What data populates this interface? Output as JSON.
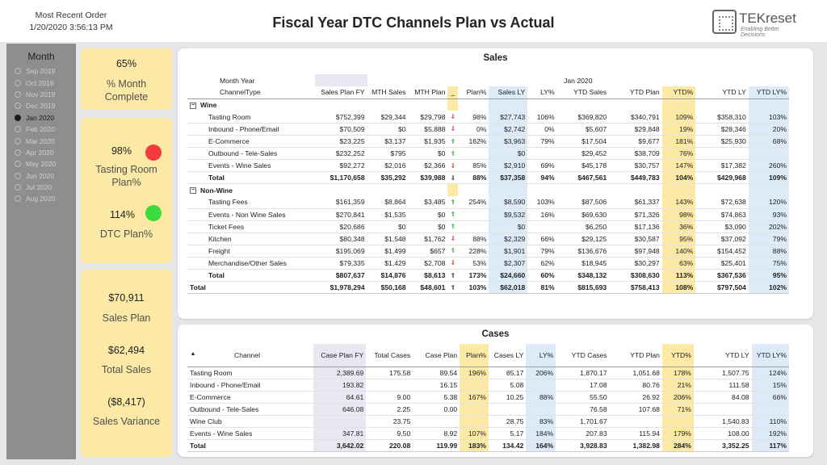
{
  "header": {
    "recent_label": "Most Recent Order",
    "recent_value": "1/20/2020 3:56:13 PM",
    "title": "Fiscal Year DTC Channels Plan vs Actual",
    "logo_name": "TEKreset",
    "logo_tagline": "Enabling Better Decisions"
  },
  "slicer": {
    "title": "Month",
    "items": [
      {
        "label": "Sep 2019",
        "selected": false
      },
      {
        "label": "Oct 2019",
        "selected": false
      },
      {
        "label": "Nov 2019",
        "selected": false
      },
      {
        "label": "Dec 2019",
        "selected": false
      },
      {
        "label": "Jan 2020",
        "selected": true
      },
      {
        "label": "Feb 2020",
        "selected": false
      },
      {
        "label": "Mar 2020",
        "selected": false
      },
      {
        "label": "Apr 2020",
        "selected": false
      },
      {
        "label": "May 2020",
        "selected": false
      },
      {
        "label": "Jun 2020",
        "selected": false
      },
      {
        "label": "Jul 2020",
        "selected": false
      },
      {
        "label": "Aug 2020",
        "selected": false
      }
    ]
  },
  "cards": {
    "month_complete_value": "65%",
    "month_complete_label": "% Month Complete",
    "tasting_value": "98%",
    "tasting_label": "Tasting Room Plan%",
    "dtc_value": "114%",
    "dtc_label": "DTC Plan%",
    "sales_plan_value": "$70,911",
    "sales_plan_label": "Sales Plan",
    "total_sales_value": "$62,494",
    "total_sales_label": "Total Sales",
    "variance_value": "($8,417)",
    "variance_label": "Sales Variance"
  },
  "colors": {
    "status_red": "#f23c3c",
    "status_green": "#3cdc3c",
    "card_yellow": "#fce9a6",
    "blue_col": "#e8e8f3",
    "light_blue_col": "#dcebf7",
    "arrow_up": "#2faa2f",
    "arrow_down": "#d63b3b"
  },
  "sales": {
    "title": "Sales",
    "corner_top": "Month Year",
    "corner_bottom": "ChannelType",
    "period": "Jan 2020",
    "columns": [
      "Sales Plan FY",
      "MTH Sales",
      "MTH Plan",
      "_",
      "Plan%",
      "Sales LY",
      "LY%",
      "YTD Sales",
      "YTD Plan",
      "YTD%",
      "YTD LY",
      "YTD LY%"
    ],
    "rows": [
      {
        "type": "group",
        "label": "Wine",
        "toggle": "−"
      },
      {
        "type": "row",
        "label": "Tasting Room",
        "cells": [
          "$752,399",
          "$29,344",
          "$29,798",
          "⇓",
          "98%",
          "$27,743",
          "106%",
          "$369,820",
          "$340,791",
          "109%",
          "$358,310",
          "103%"
        ]
      },
      {
        "type": "row",
        "label": "Inbound - Phone/Email",
        "cells": [
          "$70,509",
          "$0",
          "$5,888",
          "⇓",
          "0%",
          "$2,742",
          "0%",
          "$5,607",
          "$29,848",
          "19%",
          "$28,346",
          "20%"
        ]
      },
      {
        "type": "row",
        "label": "E-Commerce",
        "cells": [
          "$23,225",
          "$3,137",
          "$1,935",
          "⇑",
          "162%",
          "$3,963",
          "79%",
          "$17,504",
          "$9,677",
          "181%",
          "$25,930",
          "68%"
        ]
      },
      {
        "type": "row",
        "label": "Outbound - Tele-Sales",
        "cells": [
          "$232,252",
          "$795",
          "$0",
          "⇑",
          "",
          "$0",
          "",
          "$29,452",
          "$38,709",
          "76%",
          "",
          ""
        ]
      },
      {
        "type": "row",
        "label": "Events - Wine Sales",
        "cells": [
          "$92,272",
          "$2,016",
          "$2,366",
          "⇓",
          "85%",
          "$2,910",
          "69%",
          "$45,178",
          "$30,757",
          "147%",
          "$17,382",
          "260%"
        ]
      },
      {
        "type": "total",
        "label": "Total",
        "cells": [
          "$1,170,658",
          "$35,292",
          "$39,988",
          "⇓",
          "88%",
          "$37,358",
          "94%",
          "$467,561",
          "$449,783",
          "104%",
          "$429,968",
          "109%"
        ]
      },
      {
        "type": "group",
        "label": "Non-Wine",
        "toggle": "−"
      },
      {
        "type": "row",
        "label": "Tasting Fees",
        "cells": [
          "$161,359",
          "$8,864",
          "$3,485",
          "⇑",
          "254%",
          "$8,590",
          "103%",
          "$87,506",
          "$61,337",
          "143%",
          "$72,638",
          "120%"
        ]
      },
      {
        "type": "row",
        "label": "Events - Non Wine Sales",
        "cells": [
          "$270,841",
          "$1,535",
          "$0",
          "⇑",
          "",
          "$9,532",
          "16%",
          "$69,630",
          "$71,326",
          "98%",
          "$74,863",
          "93%"
        ]
      },
      {
        "type": "row",
        "label": "Ticket Fees",
        "cells": [
          "$20,686",
          "$0",
          "$0",
          "⇑",
          "",
          "$0",
          "",
          "$6,250",
          "$17,136",
          "36%",
          "$3,090",
          "202%"
        ]
      },
      {
        "type": "row",
        "label": "Kitchen",
        "cells": [
          "$80,348",
          "$1,548",
          "$1,762",
          "⇓",
          "88%",
          "$2,329",
          "66%",
          "$29,125",
          "$30,587",
          "95%",
          "$37,092",
          "79%"
        ]
      },
      {
        "type": "row",
        "label": "Freight",
        "cells": [
          "$195,069",
          "$1,499",
          "$657",
          "⇑",
          "228%",
          "$1,901",
          "79%",
          "$136,676",
          "$97,948",
          "140%",
          "$154,452",
          "88%"
        ]
      },
      {
        "type": "row",
        "label": "Merchandise/Other Sales",
        "cells": [
          "$79,335",
          "$1,429",
          "$2,708",
          "⇓",
          "53%",
          "$2,307",
          "62%",
          "$18,945",
          "$30,297",
          "63%",
          "$25,401",
          "75%"
        ]
      },
      {
        "type": "total",
        "label": "Total",
        "cells": [
          "$807,637",
          "$14,876",
          "$8,613",
          "⇑",
          "173%",
          "$24,660",
          "60%",
          "$348,132",
          "$308,630",
          "113%",
          "$367,536",
          "95%"
        ]
      },
      {
        "type": "gtotal",
        "label": "Total",
        "cells": [
          "$1,978,294",
          "$50,168",
          "$48,601",
          "⇑",
          "103%",
          "$62,018",
          "81%",
          "$815,693",
          "$758,413",
          "108%",
          "$797,504",
          "102%"
        ]
      }
    ]
  },
  "cases": {
    "title": "Cases",
    "channel_label": "Channel",
    "sort_icon": "▲",
    "columns": [
      "Case Plan FY",
      "Total Cases",
      "Case Plan",
      "Plan%",
      "Cases LY",
      "LY%",
      "YTD Cases",
      "YTD Plan",
      "YTD%",
      "YTD LY",
      "YTD LY%"
    ],
    "rows": [
      {
        "type": "row",
        "label": "Tasting Room",
        "cells": [
          "2,389.69",
          "175.58",
          "89.54",
          "196%",
          "85.17",
          "206%",
          "1,870.17",
          "1,051.68",
          "178%",
          "1,507.75",
          "124%"
        ]
      },
      {
        "type": "row",
        "label": "Inbound - Phone/Email",
        "cells": [
          "193.82",
          "",
          "16.15",
          "",
          "5.08",
          "",
          "17.08",
          "80.76",
          "21%",
          "111.58",
          "15%"
        ]
      },
      {
        "type": "row",
        "label": "E-Commerce",
        "cells": [
          "64.61",
          "9.00",
          "5.38",
          "167%",
          "10.25",
          "88%",
          "55.50",
          "26.92",
          "206%",
          "84.08",
          "66%"
        ]
      },
      {
        "type": "row",
        "label": "Outbound - Tele-Sales",
        "cells": [
          "646.08",
          "2.25",
          "0.00",
          "",
          "",
          "",
          "76.58",
          "107.68",
          "71%",
          "",
          ""
        ]
      },
      {
        "type": "row",
        "label": "Wine Club",
        "cells": [
          "",
          "23.75",
          "",
          "",
          "28.75",
          "83%",
          "1,701.67",
          "",
          "",
          "1,540.83",
          "110%"
        ]
      },
      {
        "type": "row",
        "label": "Events - Wine Sales",
        "cells": [
          "347.81",
          "9.50",
          "8.92",
          "107%",
          "5.17",
          "184%",
          "207.83",
          "115.94",
          "179%",
          "108.00",
          "192%"
        ]
      },
      {
        "type": "gtotal",
        "label": "Total",
        "cells": [
          "3,642.02",
          "220.08",
          "119.99",
          "183%",
          "134.42",
          "164%",
          "3,928.83",
          "1,382.98",
          "284%",
          "3,352.25",
          "117%"
        ]
      }
    ]
  }
}
